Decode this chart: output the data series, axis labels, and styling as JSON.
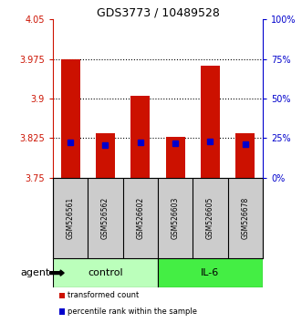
{
  "title": "GDS3773 / 10489528",
  "samples": [
    "GSM526561",
    "GSM526562",
    "GSM526602",
    "GSM526603",
    "GSM526605",
    "GSM526678"
  ],
  "red_values": [
    3.975,
    3.835,
    3.905,
    3.828,
    3.963,
    3.835
  ],
  "blue_values": [
    3.817,
    3.812,
    3.817,
    3.815,
    3.818,
    3.813
  ],
  "ymin": 3.75,
  "ymax": 4.05,
  "yticks_left": [
    3.75,
    3.825,
    3.9,
    3.975,
    4.05
  ],
  "yticks_right": [
    0,
    25,
    50,
    75,
    100
  ],
  "dotted_lines": [
    3.975,
    3.9,
    3.825
  ],
  "groups": [
    {
      "label": "control",
      "indices": [
        0,
        1,
        2
      ],
      "color": "#bbffbb"
    },
    {
      "label": "IL-6",
      "indices": [
        3,
        4,
        5
      ],
      "color": "#44ee44"
    }
  ],
  "bar_color": "#cc1100",
  "blue_color": "#0000cc",
  "bar_width": 0.55,
  "background_color": "#ffffff",
  "plot_bg": "#ffffff",
  "label_color_left": "#cc1100",
  "label_color_right": "#0000cc",
  "agent_label": "agent",
  "legend_red": "transformed count",
  "legend_blue": "percentile rank within the sample",
  "sample_bg": "#cccccc"
}
